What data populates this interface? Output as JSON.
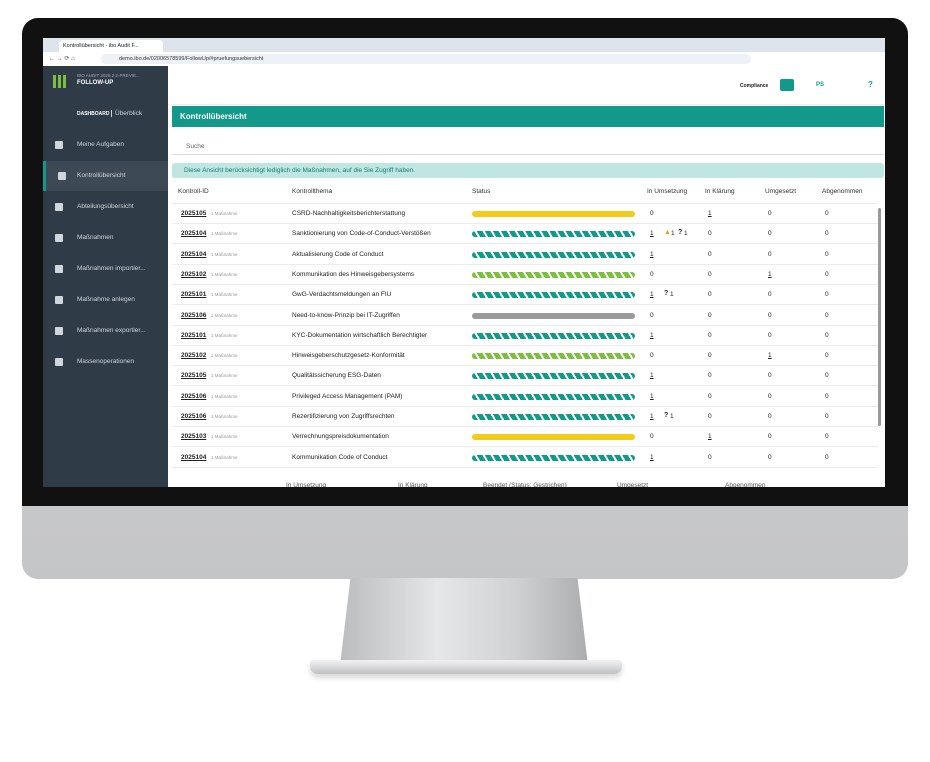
{
  "browser": {
    "tab_title": "Kontrollübersicht - ibo Audit F...",
    "url": "demo.ibo.de/02006578599/FollowUp/#pruefungsuebersicht"
  },
  "app": {
    "version": "IBO AUDIT 2025.2.2-PREVIE...",
    "module": "FOLLOW-UP",
    "context": "Compliance",
    "user": "PS",
    "help": "?"
  },
  "sidebar": {
    "dashboard": "DASHBOARD",
    "overview": "Überblick",
    "active": 1,
    "items": [
      "Meine Aufgaben",
      "Kontrollübersicht",
      "Abteilungsübersicht",
      "Maßnahmen",
      "Maßnahmen importier...",
      "Maßnahme anlegen",
      "Maßnahmen exportier...",
      "Massenoperationen"
    ]
  },
  "page": {
    "title": "Kontrollübersicht",
    "search": "Suche",
    "info": "Diese Ansicht berücksichtigt lediglich die Maßnahmen, auf die Sie Zugriff haben."
  },
  "table": {
    "columns": [
      "Kontroll-ID",
      "Kontrollthema",
      "Status",
      "In Umsetzung",
      "In Klärung",
      "Umgesetzt",
      "Abgenommen"
    ],
    "rows": [
      {
        "id": "2025105",
        "sub": "1 Maßnahme",
        "topic": "CSRD-Nachhaltigkeitsberichterstattung",
        "status": "yellow",
        "in_progress": 0,
        "in_clarification": 1,
        "implemented": 0,
        "accepted": 0
      },
      {
        "id": "2025104",
        "sub": "1 Maßnahme",
        "topic": "Sanktionierung von Code-of-Conduct-Verstößen",
        "status": "teal-striped",
        "in_progress": 1,
        "warnings": 1,
        "questions": 1,
        "in_clarification": 0,
        "implemented": 0,
        "accepted": 0
      },
      {
        "id": "2025104",
        "sub": "1 Maßnahme",
        "topic": "Aktualisierung Code of Conduct",
        "status": "teal-striped",
        "in_progress": 1,
        "in_clarification": 0,
        "implemented": 0,
        "accepted": 0
      },
      {
        "id": "2025102",
        "sub": "1 Maßnahme",
        "topic": "Kommunikation des Hinweisgebersystems",
        "status": "green-striped",
        "in_progress": 0,
        "in_clarification": 0,
        "implemented": 1,
        "accepted": 0
      },
      {
        "id": "2025101",
        "sub": "1 Maßnahme",
        "topic": "GwG-Verdachtsmeldungen an FIU",
        "status": "teal-striped",
        "in_progress": 1,
        "questions": 1,
        "in_clarification": 0,
        "implemented": 0,
        "accepted": 0
      },
      {
        "id": "2025106",
        "sub": "1 Maßnahme",
        "topic": "Need-to-know-Prinzip bei IT-Zugriffen",
        "status": "gray",
        "in_progress": 0,
        "in_clarification": 0,
        "implemented": 0,
        "accepted": 0
      },
      {
        "id": "2025101",
        "sub": "1 Maßnahme",
        "topic": "KYC-Dokumentation wirtschaftlich Berechtigter",
        "status": "teal-striped",
        "in_progress": 1,
        "in_clarification": 0,
        "implemented": 0,
        "accepted": 0
      },
      {
        "id": "2025102",
        "sub": "1 Maßnahme",
        "topic": "Hinweisgeberschutzgesetz-Konformität",
        "status": "green-striped",
        "in_progress": 0,
        "in_clarification": 0,
        "implemented": 1,
        "accepted": 0
      },
      {
        "id": "2025105",
        "sub": "1 Maßnahme",
        "topic": "Qualitätssicherung ESG-Daten",
        "status": "teal-striped",
        "in_progress": 1,
        "in_clarification": 0,
        "implemented": 0,
        "accepted": 0
      },
      {
        "id": "2025106",
        "sub": "1 Maßnahme",
        "topic": "Privileged Access Management (PAM)",
        "status": "teal-striped",
        "in_progress": 1,
        "in_clarification": 0,
        "implemented": 0,
        "accepted": 0
      },
      {
        "id": "2025106",
        "sub": "1 Maßnahme",
        "topic": "Rezertifizierung von Zugriffsrechten",
        "status": "teal-striped",
        "in_progress": 1,
        "questions": 1,
        "in_clarification": 0,
        "implemented": 0,
        "accepted": 0
      },
      {
        "id": "2025103",
        "sub": "1 Maßnahme",
        "topic": "Verrechnungspreisdokumentation",
        "status": "yellow",
        "in_progress": 0,
        "in_clarification": 1,
        "implemented": 0,
        "accepted": 0
      },
      {
        "id": "2025104",
        "sub": "1 Maßnahme",
        "topic": "Kommunikation Code of Conduct",
        "status": "teal-striped",
        "in_progress": 1,
        "in_clarification": 0,
        "implemented": 0,
        "accepted": 0
      }
    ],
    "legend": [
      "In Umsetzung",
      "In Klärung",
      "Beendet (Status: Gestrichen)",
      "Umgesetzt",
      "Abgenommen"
    ]
  }
}
